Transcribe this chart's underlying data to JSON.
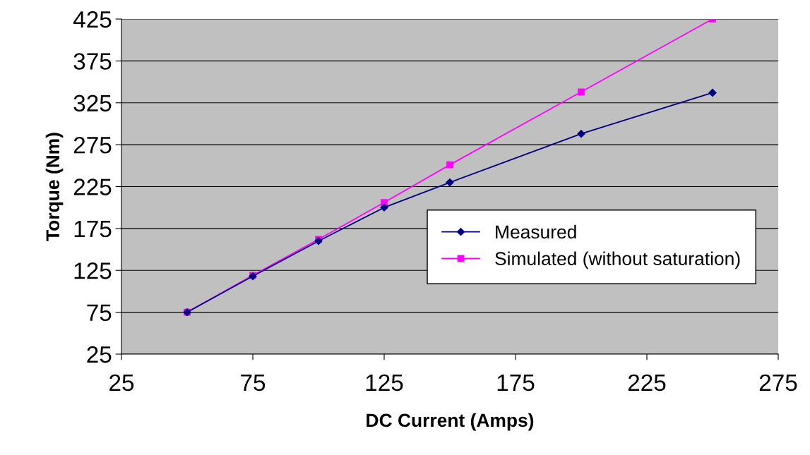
{
  "chart_data": {
    "type": "line",
    "xlabel": "DC Current (Amps)",
    "ylabel": "Torque (Nm)",
    "x": [
      50,
      75,
      100,
      125,
      150,
      200,
      250
    ],
    "series": [
      {
        "name": "Measured",
        "color": "#000080",
        "marker": "diamond",
        "values": [
          75,
          118,
          160,
          200,
          230,
          288,
          337
        ]
      },
      {
        "name": "Simulated (without saturation)",
        "color": "#ff00ff",
        "marker": "square",
        "values": [
          75,
          119,
          162,
          206,
          251,
          338,
          425
        ]
      }
    ],
    "xlim": [
      25,
      275
    ],
    "xticks": [
      25,
      75,
      125,
      175,
      225,
      275
    ],
    "ylim": [
      25,
      425
    ],
    "yticks": [
      25,
      75,
      125,
      175,
      225,
      275,
      325,
      375,
      425
    ],
    "grid": "y",
    "legend": "right",
    "line_style": "solid"
  }
}
